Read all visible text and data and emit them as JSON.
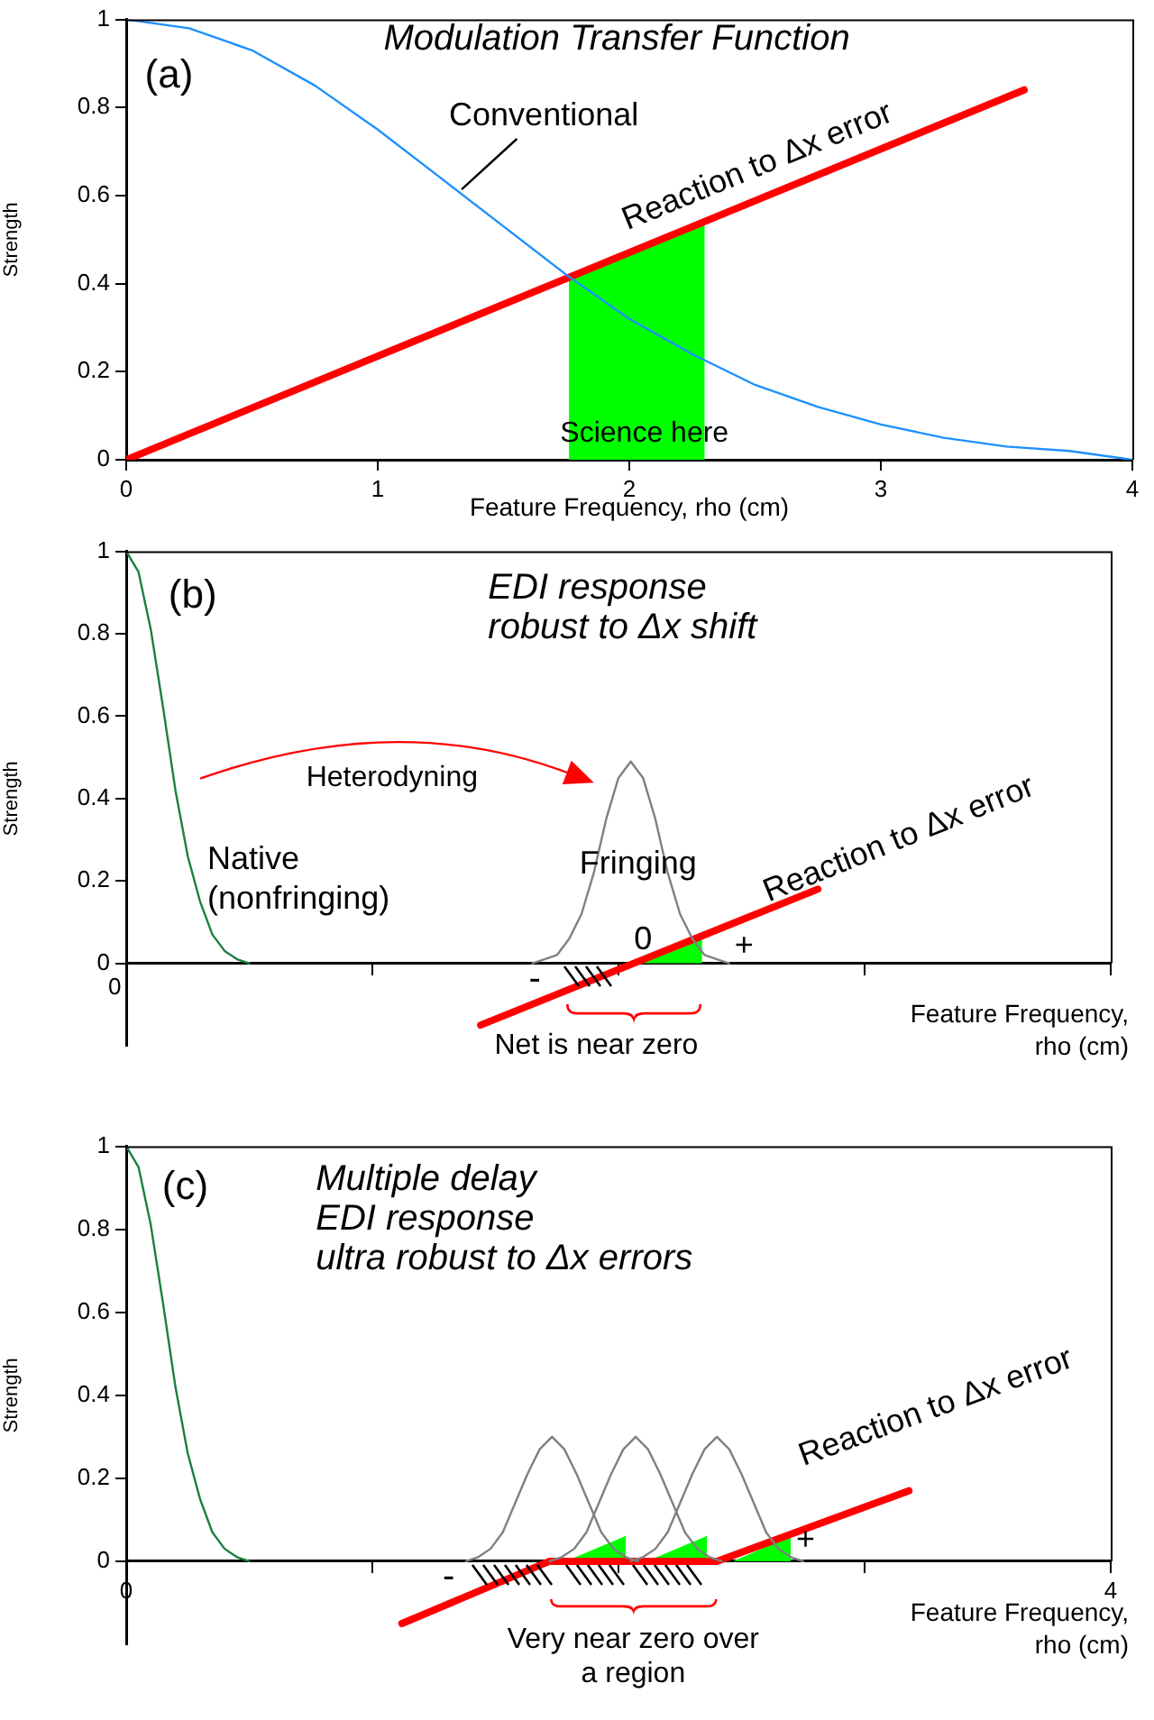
{
  "chart_data": [
    {
      "type": "line",
      "title": "Modulation Transfer Function",
      "xlabel": "Feature Frequency, rho (cm)",
      "ylabel": "Strength",
      "xlim": [
        0,
        4
      ],
      "ylim": [
        0,
        1
      ],
      "xticks": [
        0,
        1,
        2,
        3,
        4
      ],
      "yticks": [
        0,
        0.2,
        0.4,
        0.6,
        0.8,
        1
      ],
      "marker": "none",
      "annotations": [
        "(a)",
        "Science here"
      ],
      "series": [
        {
          "type": "area",
          "color": "#00ff00",
          "x": [
            1.76,
            2.3
          ],
          "values": [
            0.41,
            0.54
          ]
        },
        {
          "type": "line",
          "name": "Conventional",
          "color": "#1e90ff",
          "x": [
            0,
            0.25,
            0.5,
            0.75,
            1,
            1.25,
            1.5,
            1.75,
            2,
            2.25,
            2.5,
            2.75,
            3,
            3.25,
            3.5,
            3.75,
            4
          ],
          "values": [
            1,
            0.98,
            0.93,
            0.85,
            0.75,
            0.64,
            0.53,
            0.42,
            0.32,
            0.24,
            0.17,
            0.12,
            0.08,
            0.05,
            0.03,
            0.02,
            0
          ]
        },
        {
          "type": "line",
          "name": "Reaction to Δx error",
          "color": "#ff0000",
          "x": [
            0,
            3.57
          ],
          "values": [
            0,
            0.84
          ]
        }
      ]
    },
    {
      "type": "line",
      "title": "EDI response\nrobust to Δx shift",
      "xlabel": "Feature Frequency,\nrho (cm)",
      "ylabel": "Strength",
      "xlim": [
        0,
        4
      ],
      "ylim": [
        -0.2,
        1
      ],
      "xticks": [
        0,
        1,
        2,
        3,
        4
      ],
      "tick_labels": "y",
      "yticks": [
        0,
        0.2,
        0.4,
        0.6,
        0.8,
        1
      ],
      "marker": "none",
      "annotations": [
        "0",
        "(b)",
        "Heterodyning",
        "0",
        "-",
        "+",
        "Net is near zero"
      ],
      "series": [
        {
          "type": "line",
          "name": "Native\n(nonfringing)",
          "color": "#1a8040",
          "x": [
            0,
            0.05,
            0.1,
            0.15,
            0.2,
            0.25,
            0.3,
            0.35,
            0.4,
            0.45,
            0.5
          ],
          "values": [
            1,
            0.95,
            0.81,
            0.62,
            0.42,
            0.26,
            0.15,
            0.07,
            0.03,
            0.01,
            0
          ]
        },
        {
          "type": "area",
          "color": "#00ff00",
          "x": [
            2.04,
            2.34
          ],
          "values": [
            0,
            0.07
          ]
        },
        {
          "type": "line",
          "name": "Fringing",
          "color": "#808080",
          "x": [
            1.65,
            1.7,
            1.75,
            1.8,
            1.85,
            1.9,
            1.95,
            2,
            2.05,
            2.1,
            2.15,
            2.2,
            2.25,
            2.3,
            2.35,
            2.4,
            2.45
          ],
          "values": [
            0,
            0.01,
            0.02,
            0.06,
            0.12,
            0.22,
            0.35,
            0.45,
            0.49,
            0.45,
            0.35,
            0.22,
            0.12,
            0.06,
            0.02,
            0.01,
            0
          ]
        },
        {
          "type": "line",
          "name": "Reaction to Δx error",
          "color": "#ff0000",
          "x": [
            1.44,
            2.81
          ],
          "values": [
            -0.15,
            0.18
          ]
        }
      ]
    },
    {
      "type": "line",
      "title": "Multiple delay\nEDI response\nultra robust to Δx errors",
      "xlabel": "Feature Frequency,\nrho (cm)",
      "ylabel": "Strength",
      "xlim": [
        0,
        4
      ],
      "ylim": [
        -0.2,
        1
      ],
      "xticks": [
        0,
        {
          "value": 1,
          "label": null
        },
        {
          "value": 2,
          "label": null
        },
        {
          "value": 3,
          "label": null
        },
        4
      ],
      "yticks": [
        0,
        0.2,
        0.4,
        0.6,
        0.8,
        1
      ],
      "marker": "none",
      "annotations": [
        "(c)",
        "-",
        "+",
        "Very near zero over\na region"
      ],
      "series": [
        {
          "type": "line",
          "color": "#1a8040",
          "x": [
            0,
            0.05,
            0.1,
            0.15,
            0.2,
            0.25,
            0.3,
            0.35,
            0.4,
            0.45,
            0.5
          ],
          "values": [
            1,
            0.95,
            0.81,
            0.62,
            0.42,
            0.26,
            0.15,
            0.07,
            0.03,
            0.01,
            0
          ]
        },
        {
          "type": "area",
          "color": "#00ff00",
          "x": [
            1.79,
            2.03
          ],
          "values": [
            0,
            0.06
          ]
        },
        {
          "type": "area",
          "color": "#00ff00",
          "x": [
            2.12,
            2.36
          ],
          "values": [
            0,
            0.06
          ]
        },
        {
          "type": "area",
          "color": "#00ff00",
          "x": [
            2.47,
            2.7
          ],
          "values": [
            0,
            0.06
          ]
        },
        {
          "type": "line",
          "color": "#808080",
          "x": [
            1.38,
            1.43,
            1.48,
            1.53,
            1.58,
            1.63,
            1.68,
            1.73,
            1.78,
            1.83,
            1.88,
            1.93,
            1.98,
            2.03,
            2.08
          ],
          "values": [
            0,
            0.01,
            0.03,
            0.07,
            0.14,
            0.21,
            0.27,
            0.3,
            0.27,
            0.21,
            0.14,
            0.07,
            0.03,
            0.01,
            0
          ]
        },
        {
          "type": "line",
          "color": "#808080",
          "x": [
            1.72,
            1.77,
            1.82,
            1.87,
            1.92,
            1.97,
            2.02,
            2.07,
            2.12,
            2.17,
            2.22,
            2.27,
            2.32,
            2.37,
            2.42
          ],
          "values": [
            0,
            0.01,
            0.03,
            0.07,
            0.14,
            0.21,
            0.27,
            0.3,
            0.27,
            0.21,
            0.14,
            0.07,
            0.03,
            0.01,
            0
          ]
        },
        {
          "type": "line",
          "color": "#808080",
          "x": [
            2.05,
            2.1,
            2.15,
            2.2,
            2.25,
            2.3,
            2.35,
            2.4,
            2.45,
            2.5,
            2.55,
            2.6,
            2.65,
            2.7,
            2.75
          ],
          "values": [
            0,
            0.01,
            0.03,
            0.07,
            0.14,
            0.21,
            0.27,
            0.3,
            0.27,
            0.21,
            0.14,
            0.07,
            0.03,
            0.01,
            0
          ]
        },
        {
          "type": "line",
          "name": "Reaction to Δx error",
          "color": "#ff0000",
          "x": [
            1.12,
            1.72,
            2.4,
            3.18
          ],
          "values": [
            -0.15,
            0,
            0,
            0.17
          ]
        }
      ]
    }
  ]
}
